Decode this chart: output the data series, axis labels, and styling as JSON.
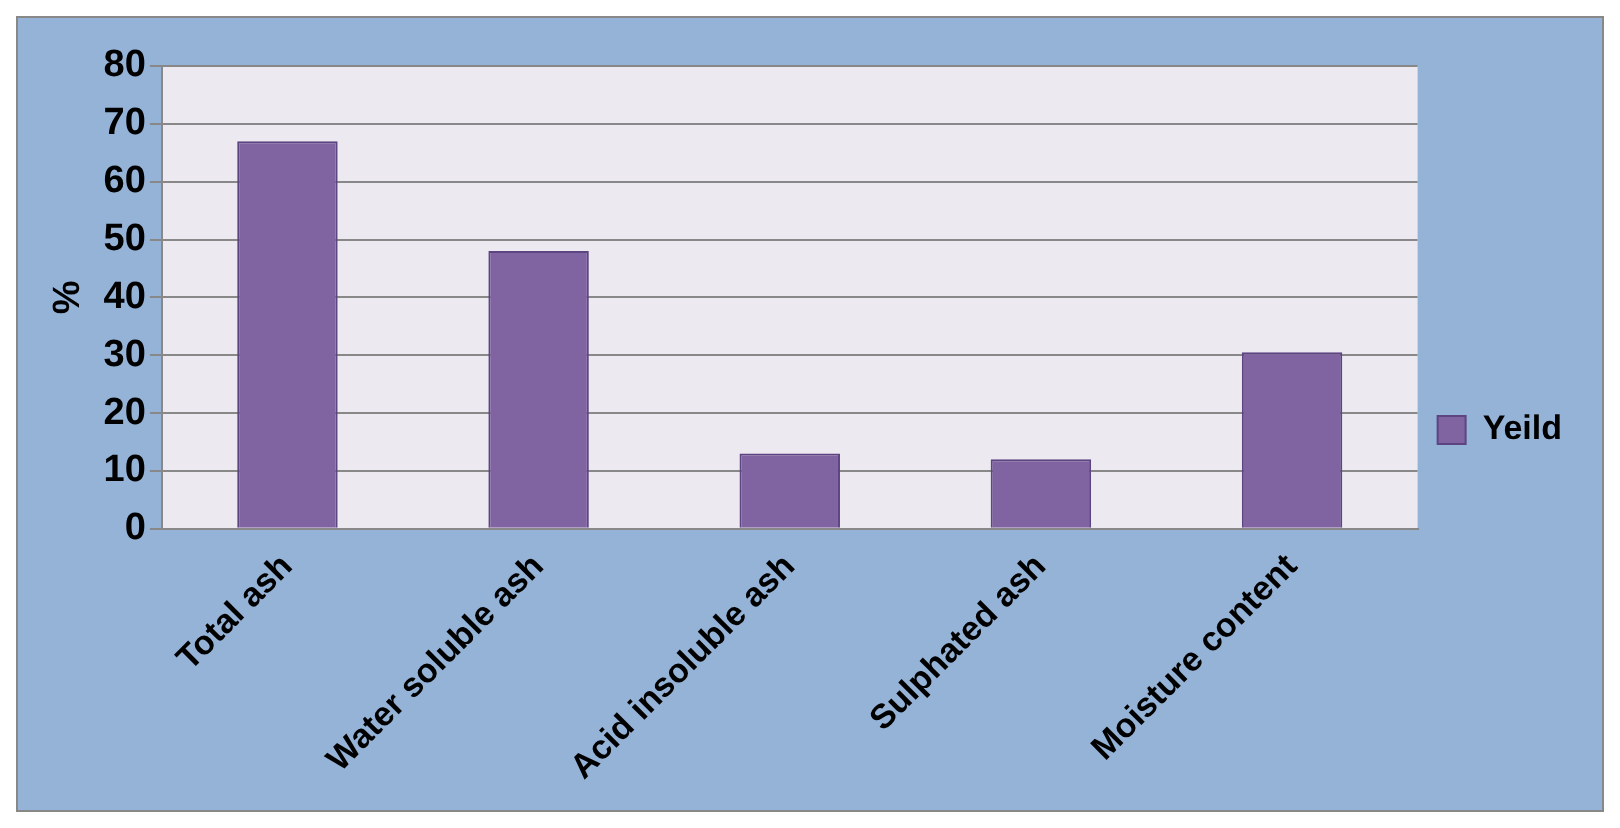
{
  "chart_data": {
    "type": "bar",
    "ylabel": "%",
    "categories": [
      "Total ash",
      "Water soluble ash",
      "Acid insoluble ash",
      "Sulphated ash",
      "Moisture content"
    ],
    "series": [
      {
        "name": "Yeild",
        "color": "#8064a2",
        "values": [
          67,
          48,
          13,
          12,
          30.5
        ]
      }
    ],
    "ylim": [
      0,
      80
    ],
    "yticks": [
      0,
      10,
      20,
      30,
      40,
      50,
      60,
      70,
      80
    ],
    "grid": "y",
    "legend": "right"
  }
}
